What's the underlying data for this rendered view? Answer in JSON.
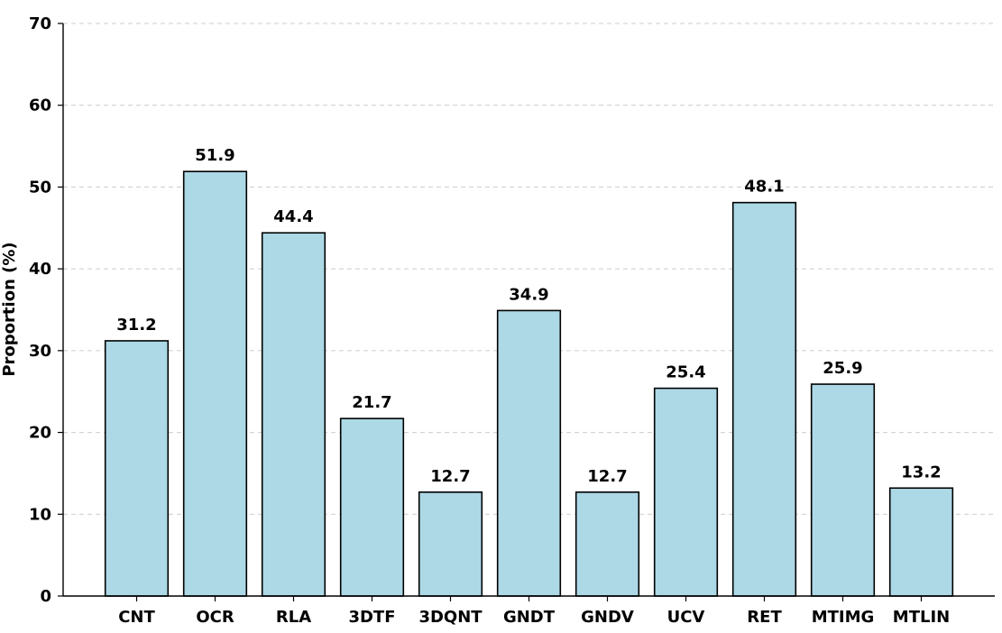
{
  "chart_data": {
    "type": "bar",
    "title": "",
    "xlabel": "",
    "ylabel": "Proportion (%)",
    "categories": [
      "CNT",
      "OCR",
      "RLA",
      "3DTF",
      "3DQNT",
      "GNDT",
      "GNDV",
      "UCV",
      "RET",
      "MTIMG",
      "MTLIN"
    ],
    "values": [
      31.2,
      51.9,
      44.4,
      21.7,
      12.7,
      34.9,
      12.7,
      25.4,
      48.1,
      25.9,
      13.2
    ],
    "value_labels": [
      "31.2",
      "51.9",
      "44.4",
      "21.7",
      "12.7",
      "34.9",
      "12.7",
      "25.4",
      "48.1",
      "25.9",
      "13.2"
    ],
    "ylim": [
      0,
      70
    ],
    "yticks": [
      0,
      10,
      20,
      30,
      40,
      50,
      60,
      70
    ],
    "ytick_labels": [
      "0",
      "10",
      "20",
      "30",
      "40",
      "50",
      "60",
      "70"
    ],
    "grid": "y-dashed",
    "legend": "none",
    "bar_color": "#add8e6",
    "bar_edge_color": "#000000",
    "grid_color": "#cccccc"
  }
}
